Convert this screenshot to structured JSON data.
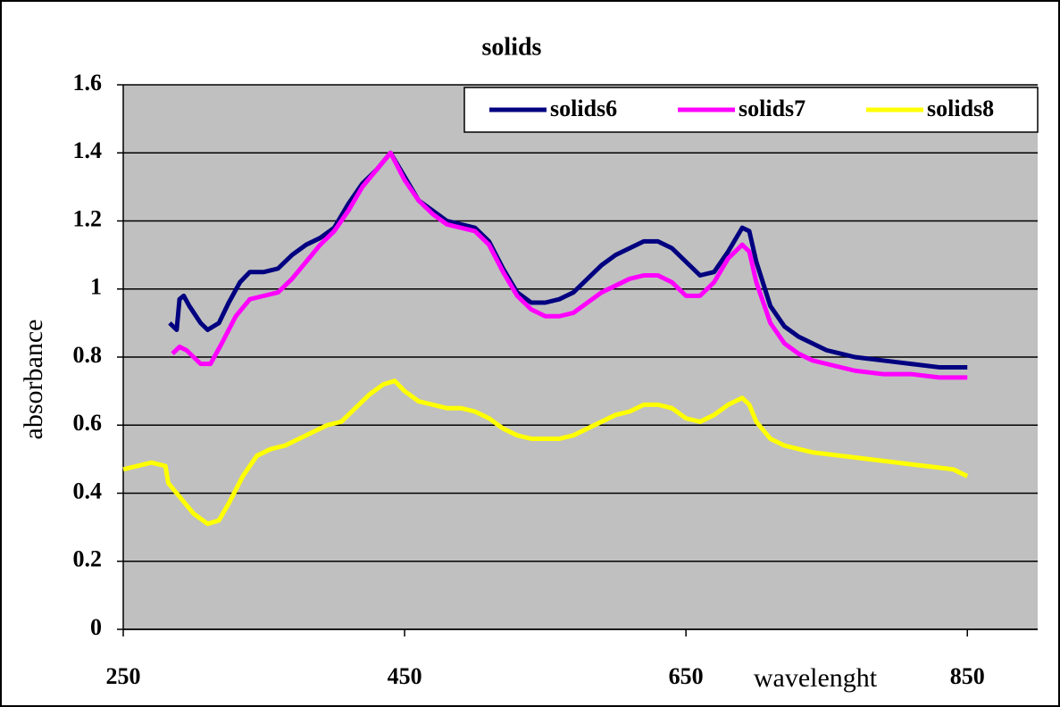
{
  "chart_data": {
    "type": "line",
    "title": "solids",
    "xlabel": "wavelenght",
    "ylabel": "absorbance",
    "xlim": [
      250,
      900
    ],
    "xticks": [
      250,
      450,
      650,
      850
    ],
    "ylim": [
      0,
      1.6
    ],
    "yticks": [
      0,
      0.2,
      0.4,
      0.6,
      0.8,
      1,
      1.2,
      1.4,
      1.6
    ],
    "grid": true,
    "background": "#c0c0c0",
    "legend": "top-right",
    "series": [
      {
        "name": "solids6",
        "color": "#000080",
        "x": [
          283,
          288,
          290,
          293,
          297,
          305,
          310,
          318,
          325,
          333,
          340,
          350,
          360,
          370,
          380,
          390,
          400,
          410,
          420,
          430,
          440,
          450,
          460,
          470,
          480,
          490,
          500,
          510,
          520,
          530,
          540,
          550,
          560,
          570,
          580,
          590,
          600,
          610,
          620,
          630,
          640,
          650,
          660,
          670,
          680,
          690,
          695,
          700,
          710,
          720,
          730,
          740,
          750,
          760,
          770,
          790,
          810,
          830,
          850
        ],
        "values": [
          0.9,
          0.88,
          0.97,
          0.98,
          0.95,
          0.9,
          0.88,
          0.9,
          0.96,
          1.02,
          1.05,
          1.05,
          1.06,
          1.1,
          1.13,
          1.15,
          1.18,
          1.25,
          1.31,
          1.35,
          1.4,
          1.33,
          1.26,
          1.23,
          1.2,
          1.19,
          1.18,
          1.14,
          1.06,
          0.99,
          0.96,
          0.96,
          0.97,
          0.99,
          1.03,
          1.07,
          1.1,
          1.12,
          1.14,
          1.14,
          1.12,
          1.08,
          1.04,
          1.05,
          1.11,
          1.18,
          1.17,
          1.08,
          0.95,
          0.89,
          0.86,
          0.84,
          0.82,
          0.81,
          0.8,
          0.79,
          0.78,
          0.77,
          0.77
        ]
      },
      {
        "name": "solids7",
        "color": "#ff00ff",
        "x": [
          285,
          290,
          295,
          300,
          305,
          312,
          320,
          330,
          340,
          350,
          360,
          370,
          380,
          390,
          400,
          410,
          420,
          430,
          440,
          450,
          460,
          470,
          480,
          490,
          500,
          510,
          520,
          530,
          540,
          550,
          560,
          570,
          580,
          590,
          600,
          610,
          620,
          630,
          640,
          650,
          660,
          670,
          680,
          690,
          695,
          700,
          710,
          720,
          730,
          740,
          750,
          770,
          790,
          810,
          830,
          850
        ],
        "values": [
          0.81,
          0.83,
          0.82,
          0.8,
          0.78,
          0.78,
          0.84,
          0.92,
          0.97,
          0.98,
          0.99,
          1.03,
          1.08,
          1.13,
          1.17,
          1.23,
          1.3,
          1.35,
          1.4,
          1.32,
          1.26,
          1.22,
          1.19,
          1.18,
          1.17,
          1.13,
          1.05,
          0.98,
          0.94,
          0.92,
          0.92,
          0.93,
          0.96,
          0.99,
          1.01,
          1.03,
          1.04,
          1.04,
          1.02,
          0.98,
          0.98,
          1.02,
          1.09,
          1.13,
          1.11,
          1.02,
          0.9,
          0.84,
          0.81,
          0.79,
          0.78,
          0.76,
          0.75,
          0.75,
          0.74,
          0.74
        ]
      },
      {
        "name": "solids8",
        "color": "#ffff00",
        "x": [
          250,
          260,
          270,
          280,
          282,
          290,
          300,
          310,
          318,
          325,
          335,
          345,
          355,
          365,
          375,
          385,
          395,
          405,
          415,
          425,
          435,
          443,
          450,
          460,
          470,
          480,
          490,
          500,
          510,
          520,
          530,
          540,
          560,
          570,
          580,
          590,
          600,
          610,
          620,
          630,
          640,
          650,
          660,
          670,
          680,
          690,
          695,
          700,
          710,
          720,
          740,
          760,
          780,
          800,
          820,
          840,
          850
        ],
        "values": [
          0.47,
          0.48,
          0.49,
          0.48,
          0.43,
          0.39,
          0.34,
          0.31,
          0.32,
          0.37,
          0.45,
          0.51,
          0.53,
          0.54,
          0.56,
          0.58,
          0.6,
          0.61,
          0.65,
          0.69,
          0.72,
          0.73,
          0.7,
          0.67,
          0.66,
          0.65,
          0.65,
          0.64,
          0.62,
          0.59,
          0.57,
          0.56,
          0.56,
          0.57,
          0.59,
          0.61,
          0.63,
          0.64,
          0.66,
          0.66,
          0.65,
          0.62,
          0.61,
          0.63,
          0.66,
          0.68,
          0.66,
          0.61,
          0.56,
          0.54,
          0.52,
          0.51,
          0.5,
          0.49,
          0.48,
          0.47,
          0.45
        ]
      }
    ]
  }
}
